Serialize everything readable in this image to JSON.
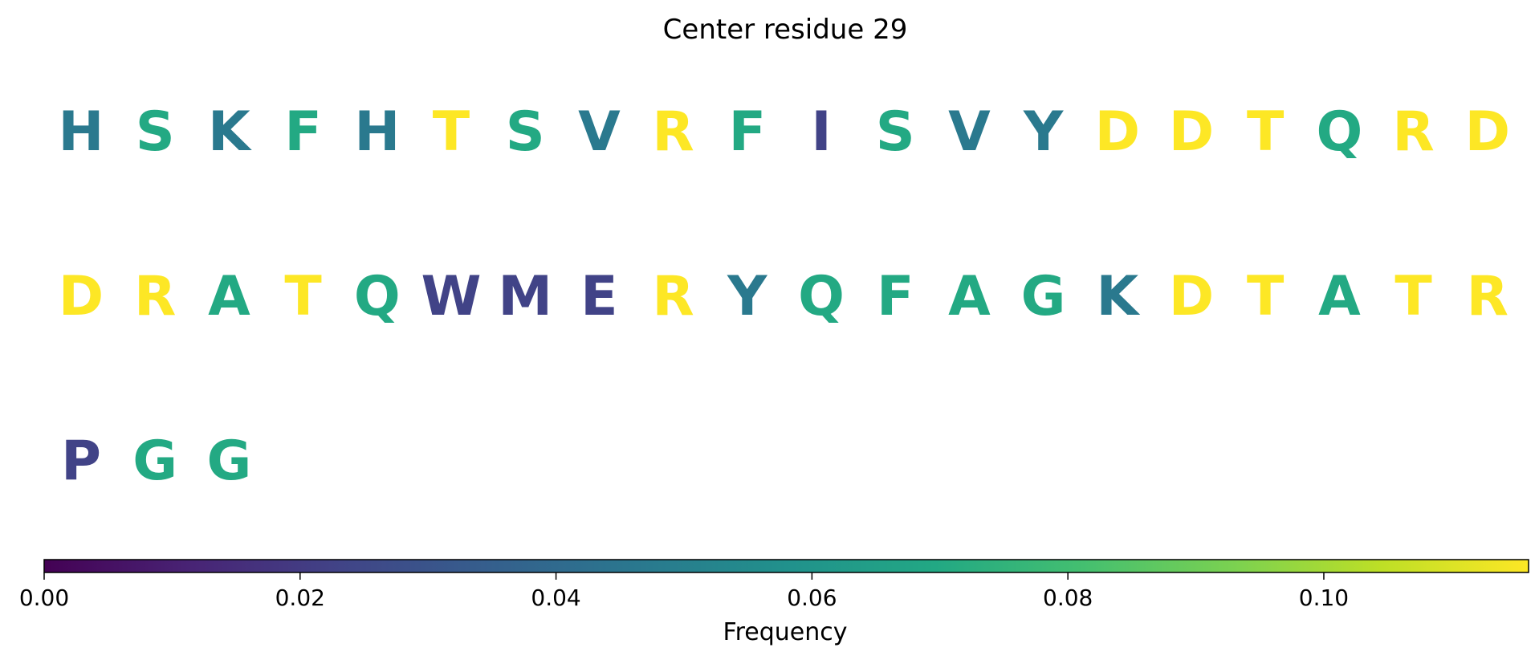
{
  "chart_data": {
    "type": "sequence-logo",
    "title": "Center residue 29",
    "colormap": "viridis",
    "colorbar": {
      "label": "Frequency",
      "range": [
        0,
        0.116
      ],
      "ticks": [
        0.0,
        0.02,
        0.04,
        0.06,
        0.08,
        0.1
      ],
      "tick_labels": [
        "0.00",
        "0.02",
        "0.04",
        "0.06",
        "0.08",
        "0.10"
      ]
    },
    "residues": [
      {
        "letter": "H",
        "frequency": 0.047
      },
      {
        "letter": "S",
        "frequency": 0.07
      },
      {
        "letter": "K",
        "frequency": 0.047
      },
      {
        "letter": "F",
        "frequency": 0.07
      },
      {
        "letter": "H",
        "frequency": 0.047
      },
      {
        "letter": "T",
        "frequency": 0.116
      },
      {
        "letter": "S",
        "frequency": 0.07
      },
      {
        "letter": "V",
        "frequency": 0.047
      },
      {
        "letter": "R",
        "frequency": 0.116
      },
      {
        "letter": "F",
        "frequency": 0.07
      },
      {
        "letter": "I",
        "frequency": 0.023
      },
      {
        "letter": "S",
        "frequency": 0.07
      },
      {
        "letter": "V",
        "frequency": 0.047
      },
      {
        "letter": "Y",
        "frequency": 0.047
      },
      {
        "letter": "D",
        "frequency": 0.116
      },
      {
        "letter": "D",
        "frequency": 0.116
      },
      {
        "letter": "T",
        "frequency": 0.116
      },
      {
        "letter": "Q",
        "frequency": 0.07
      },
      {
        "letter": "R",
        "frequency": 0.116
      },
      {
        "letter": "D",
        "frequency": 0.116
      },
      {
        "letter": "D",
        "frequency": 0.116
      },
      {
        "letter": "R",
        "frequency": 0.116
      },
      {
        "letter": "A",
        "frequency": 0.07
      },
      {
        "letter": "T",
        "frequency": 0.116
      },
      {
        "letter": "Q",
        "frequency": 0.07
      },
      {
        "letter": "W",
        "frequency": 0.023
      },
      {
        "letter": "M",
        "frequency": 0.023
      },
      {
        "letter": "E",
        "frequency": 0.023
      },
      {
        "letter": "R",
        "frequency": 0.116
      },
      {
        "letter": "Y",
        "frequency": 0.047
      },
      {
        "letter": "Q",
        "frequency": 0.07
      },
      {
        "letter": "F",
        "frequency": 0.07
      },
      {
        "letter": "A",
        "frequency": 0.07
      },
      {
        "letter": "G",
        "frequency": 0.07
      },
      {
        "letter": "K",
        "frequency": 0.047
      },
      {
        "letter": "D",
        "frequency": 0.116
      },
      {
        "letter": "T",
        "frequency": 0.116
      },
      {
        "letter": "A",
        "frequency": 0.07
      },
      {
        "letter": "T",
        "frequency": 0.116
      },
      {
        "letter": "R",
        "frequency": 0.116
      },
      {
        "letter": "P",
        "frequency": 0.023
      },
      {
        "letter": "G",
        "frequency": 0.07
      },
      {
        "letter": "G",
        "frequency": 0.07
      }
    ]
  }
}
